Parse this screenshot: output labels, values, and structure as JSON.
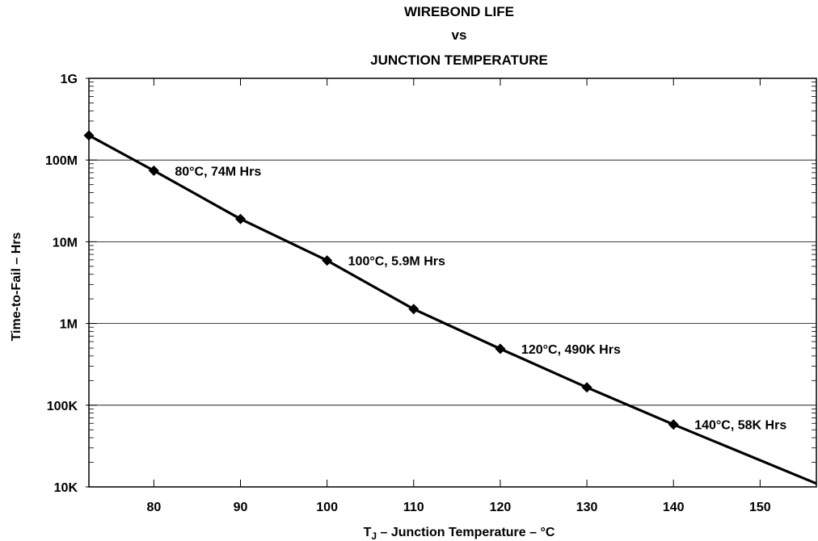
{
  "chart_data": {
    "type": "line",
    "title_lines": [
      "WIREBOND LIFE",
      "vs",
      "JUNCTION TEMPERATURE"
    ],
    "xlabel_main": "T",
    "xlabel_sub": "J",
    "xlabel_rest": " – Junction Temperature – °C",
    "ylabel": "Time-to-Fail – Hrs",
    "x_range": [
      72.5,
      156.5
    ],
    "y_range": [
      10000,
      1000000000
    ],
    "y_scale": "log",
    "grid": "horizontal-major",
    "x_ticks": [
      80,
      90,
      100,
      110,
      120,
      130,
      140,
      150
    ],
    "x_tick_labels": [
      "80",
      "90",
      "100",
      "110",
      "120",
      "130",
      "140",
      "150"
    ],
    "y_ticks": [
      10000,
      100000,
      1000000,
      10000000,
      100000000,
      1000000000
    ],
    "y_tick_labels": [
      "10K",
      "100K",
      "1M",
      "10M",
      "100M",
      "1G"
    ],
    "series": [
      {
        "marker": "diamond",
        "color": "#000000",
        "x": [
          72.5,
          80,
          90,
          100,
          110,
          120,
          130,
          140,
          156.5
        ],
        "y": [
          200000000,
          74000000,
          19000000,
          5900000,
          1500000,
          490000,
          165000,
          58000,
          11000
        ],
        "marker_x": [
          72.5,
          80,
          90,
          100,
          110,
          120,
          130,
          140
        ]
      }
    ],
    "annotations": [
      {
        "x": 80,
        "y": 74000000,
        "text": "80°C, 74M Hrs"
      },
      {
        "x": 100,
        "y": 5900000,
        "text": "100°C, 5.9M Hrs"
      },
      {
        "x": 120,
        "y": 490000,
        "text": "120°C, 490K Hrs"
      },
      {
        "x": 140,
        "y": 58000,
        "text": "140°C, 58K Hrs"
      }
    ]
  }
}
